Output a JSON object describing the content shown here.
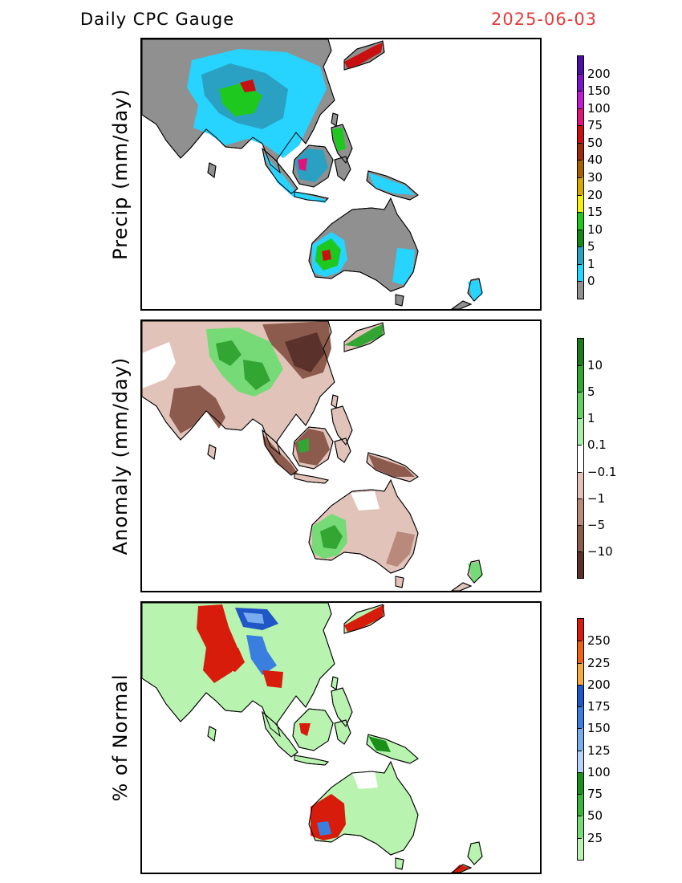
{
  "header": {
    "title": "Daily CPC Gauge",
    "date": "2025-06-03"
  },
  "panels": [
    {
      "label": "Precip (mm/day)",
      "ticks": [
        "200",
        "150",
        "100",
        "75",
        "50",
        "40",
        "30",
        "20",
        "15",
        "10",
        "5",
        "1",
        "0"
      ],
      "colors": [
        "#4b0fa8",
        "#7a14c9",
        "#c01bd1",
        "#e0147a",
        "#c81010",
        "#9c2a0c",
        "#a85f00",
        "#d6a800",
        "#f3f00a",
        "#1ec81e",
        "#138a13",
        "#2aa0c2",
        "#27d3ff",
        "#909090"
      ]
    },
    {
      "label": "Anomaly (mm/day)",
      "ticks": [
        "10",
        "5",
        "1",
        "0.1",
        "−0.1",
        "−1",
        "−5",
        "−10"
      ],
      "colors": [
        "#1b7a1b",
        "#33a533",
        "#63cf63",
        "#a8eda8",
        "#ffffff",
        "#e2c3ba",
        "#b98a7c",
        "#8c5b4e",
        "#5a322b"
      ]
    },
    {
      "label": "% of Normal",
      "ticks": [
        "250",
        "225",
        "200",
        "175",
        "150",
        "125",
        "100",
        "75",
        "50",
        "25"
      ],
      "colors": [
        "#d81c0c",
        "#f06015",
        "#f5aa3f",
        "#1f57c6",
        "#3a7ee0",
        "#79acef",
        "#b4d2f7",
        "#1a8f1a",
        "#3bb43b",
        "#76db76",
        "#b8f3b0"
      ]
    }
  ]
}
